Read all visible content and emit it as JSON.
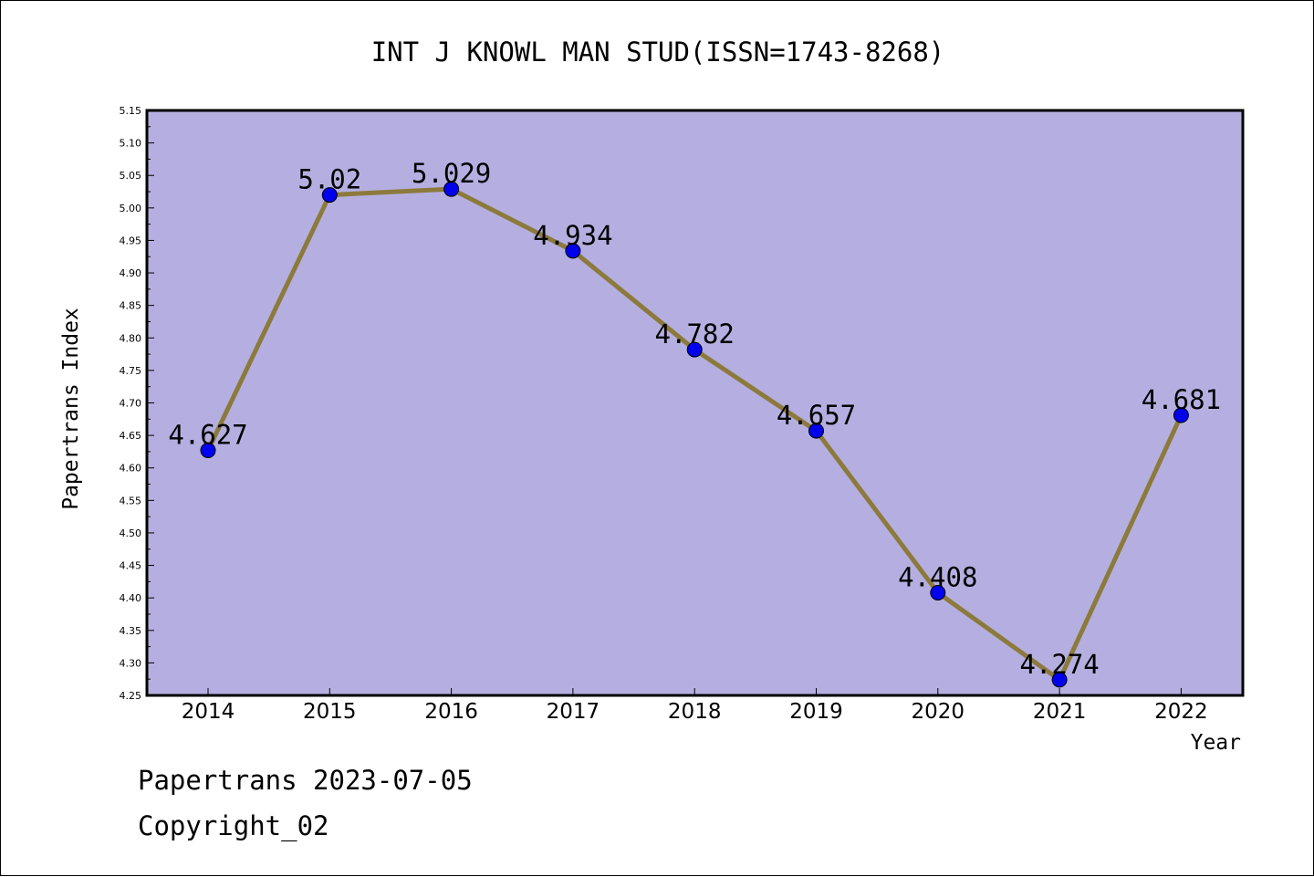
{
  "chart_data": {
    "type": "line",
    "title": "INT J KNOWL MAN STUD(ISSN=1743-8268)",
    "xlabel": "Year",
    "ylabel": "Papertrans Index",
    "categories": [
      "2014",
      "2015",
      "2016",
      "2017",
      "2018",
      "2019",
      "2020",
      "2021",
      "2022"
    ],
    "series": [
      {
        "values": [
          4.627,
          5.02,
          5.029,
          4.934,
          4.782,
          4.657,
          4.408,
          4.274,
          4.681
        ],
        "labels": [
          "4.627",
          "5.02",
          "5.029",
          "4.934",
          "4.782",
          "4.657",
          "4.408",
          "4.274",
          "4.681"
        ]
      }
    ],
    "ylim": [
      4.25,
      5.15
    ],
    "yticks": [
      "4.25",
      "4.30",
      "4.35",
      "4.40",
      "4.45",
      "4.50",
      "4.55",
      "4.60",
      "4.65",
      "4.70",
      "4.75",
      "4.80",
      "4.85",
      "4.90",
      "4.95",
      "5.00",
      "5.05",
      "5.10",
      "5.15"
    ],
    "grid": false,
    "colors": {
      "plot_background": "#b5afe1",
      "line": "#8c7a3c",
      "marker": "#0000ee"
    }
  },
  "footer": {
    "source": "Papertrans 2023-07-05",
    "copyright": "Copyright_02"
  }
}
